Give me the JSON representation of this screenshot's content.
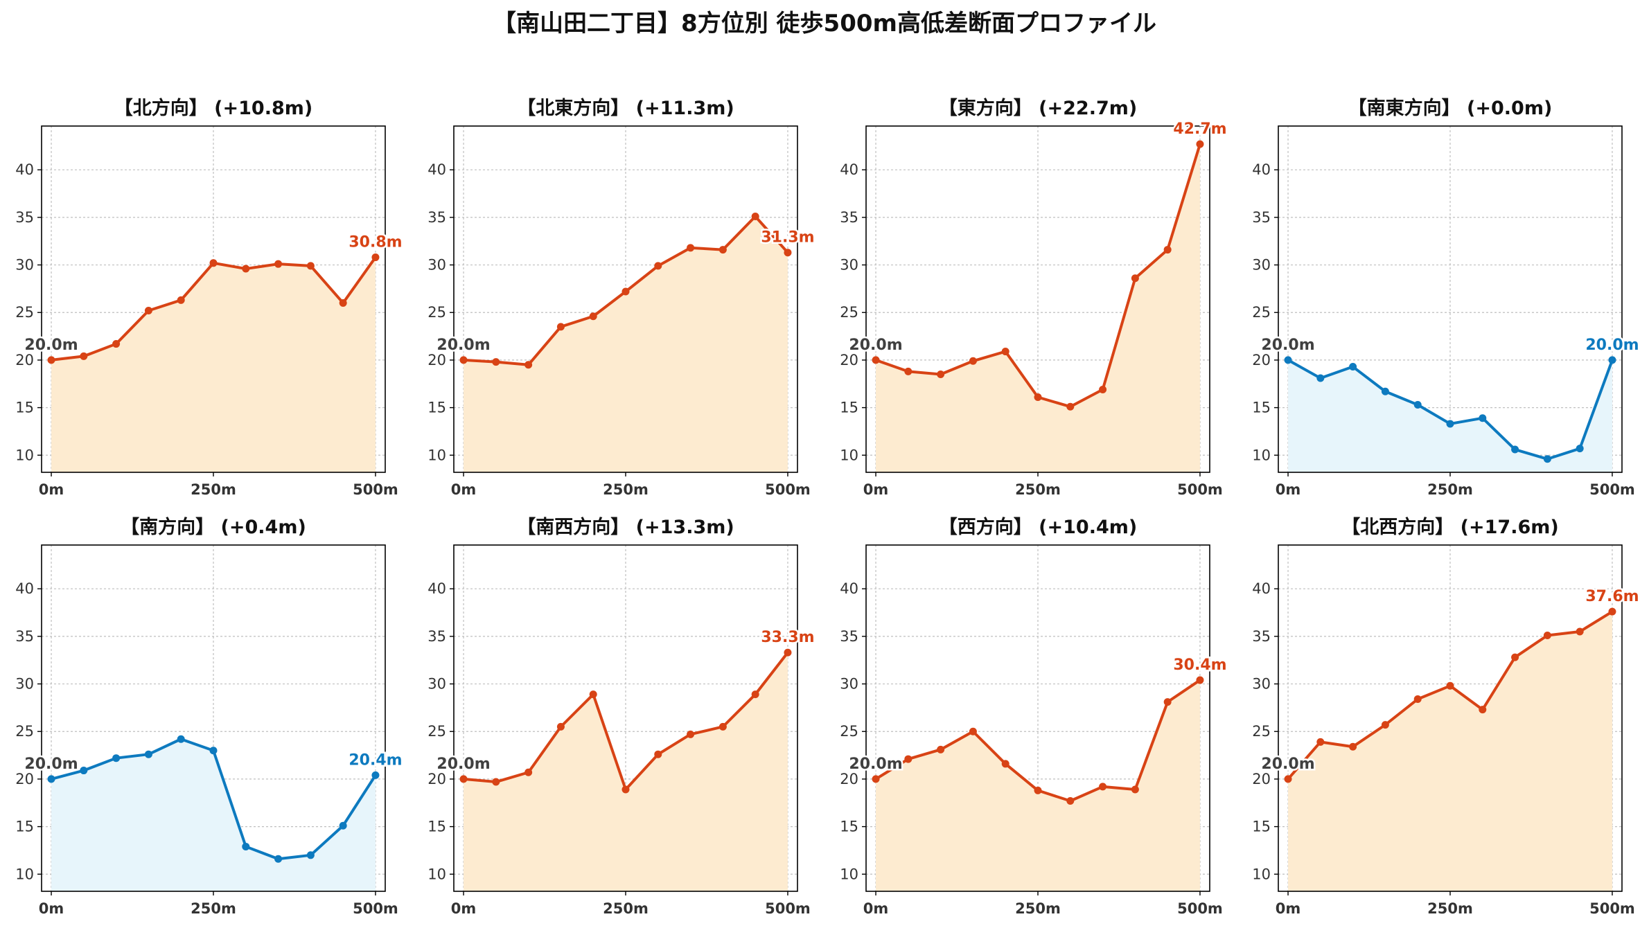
{
  "figure": {
    "title": "【南山田二丁目】8方位別 徒歩500m高低差断面プロファイル"
  },
  "colors": {
    "up_line": "#D84315",
    "up_fill": "#FDEBD0",
    "down_line": "#0D7ABF",
    "down_fill": "#E7F5FB",
    "start_label": "#404040",
    "axis": "#000000",
    "grid": "#BFBFBF",
    "tick_text": "#333333",
    "title_text": "#111111"
  },
  "chart_data": [
    {
      "type": "area",
      "title": "【北方向】 (+10.8m)",
      "trend": "up",
      "x": [
        0,
        50,
        100,
        150,
        200,
        250,
        300,
        350,
        400,
        450,
        500
      ],
      "y": [
        20.0,
        20.4,
        21.7,
        25.2,
        26.3,
        30.2,
        29.6,
        30.1,
        29.9,
        26.0,
        30.8
      ],
      "start_label": "20.0m",
      "end_label": "30.8m",
      "xticks": [
        0,
        250,
        500
      ],
      "xtick_labels": [
        "0m",
        "250m",
        "500m"
      ],
      "yticks": [
        10,
        15,
        20,
        25,
        30,
        35,
        40
      ],
      "yticklabels": [
        "10",
        "15",
        "20",
        "25",
        "30",
        "35",
        "40"
      ],
      "xlim": [
        -15,
        515
      ],
      "ylim": [
        8.2,
        44.6
      ],
      "grid": true
    },
    {
      "type": "area",
      "title": "【北東方向】 (+11.3m)",
      "trend": "up",
      "x": [
        0,
        50,
        100,
        150,
        200,
        250,
        300,
        350,
        400,
        450,
        500
      ],
      "y": [
        20.0,
        19.8,
        19.5,
        23.5,
        24.6,
        27.2,
        29.9,
        31.8,
        31.6,
        35.1,
        31.3
      ],
      "start_label": "20.0m",
      "end_label": "31.3m",
      "xticks": [
        0,
        250,
        500
      ],
      "xtick_labels": [
        "0m",
        "250m",
        "500m"
      ],
      "yticks": [
        10,
        15,
        20,
        25,
        30,
        35,
        40
      ],
      "yticklabels": [
        "10",
        "15",
        "20",
        "25",
        "30",
        "35",
        "40"
      ],
      "xlim": [
        -15,
        515
      ],
      "ylim": [
        8.2,
        44.6
      ],
      "grid": true
    },
    {
      "type": "area",
      "title": "【東方向】 (+22.7m)",
      "trend": "up",
      "x": [
        0,
        50,
        100,
        150,
        200,
        250,
        300,
        350,
        400,
        450,
        500
      ],
      "y": [
        20.0,
        18.8,
        18.5,
        19.9,
        20.9,
        16.1,
        15.1,
        16.9,
        28.6,
        31.6,
        42.7
      ],
      "start_label": "20.0m",
      "end_label": "42.7m",
      "xticks": [
        0,
        250,
        500
      ],
      "xtick_labels": [
        "0m",
        "250m",
        "500m"
      ],
      "yticks": [
        10,
        15,
        20,
        25,
        30,
        35,
        40
      ],
      "yticklabels": [
        "10",
        "15",
        "20",
        "25",
        "30",
        "35",
        "40"
      ],
      "xlim": [
        -15,
        515
      ],
      "ylim": [
        8.2,
        44.6
      ],
      "grid": true
    },
    {
      "type": "area",
      "title": "【南東方向】 (+0.0m)",
      "trend": "down",
      "x": [
        0,
        50,
        100,
        150,
        200,
        250,
        300,
        350,
        400,
        450,
        500
      ],
      "y": [
        20.0,
        18.1,
        19.3,
        16.7,
        15.3,
        13.3,
        13.9,
        10.6,
        9.6,
        10.7,
        20.0
      ],
      "start_label": "20.0m",
      "end_label": "20.0m",
      "xticks": [
        0,
        250,
        500
      ],
      "xtick_labels": [
        "0m",
        "250m",
        "500m"
      ],
      "yticks": [
        10,
        15,
        20,
        25,
        30,
        35,
        40
      ],
      "yticklabels": [
        "10",
        "15",
        "20",
        "25",
        "30",
        "35",
        "40"
      ],
      "xlim": [
        -15,
        515
      ],
      "ylim": [
        8.2,
        44.6
      ],
      "grid": true
    },
    {
      "type": "area",
      "title": "【南方向】 (+0.4m)",
      "trend": "down",
      "x": [
        0,
        50,
        100,
        150,
        200,
        250,
        300,
        350,
        400,
        450,
        500
      ],
      "y": [
        20.0,
        20.9,
        22.2,
        22.6,
        24.2,
        23.0,
        12.9,
        11.6,
        12.0,
        15.1,
        20.4
      ],
      "start_label": "20.0m",
      "end_label": "20.4m",
      "xticks": [
        0,
        250,
        500
      ],
      "xtick_labels": [
        "0m",
        "250m",
        "500m"
      ],
      "yticks": [
        10,
        15,
        20,
        25,
        30,
        35,
        40
      ],
      "yticklabels": [
        "10",
        "15",
        "20",
        "25",
        "30",
        "35",
        "40"
      ],
      "xlim": [
        -15,
        515
      ],
      "ylim": [
        8.2,
        44.6
      ],
      "grid": true
    },
    {
      "type": "area",
      "title": "【南西方向】 (+13.3m)",
      "trend": "up",
      "x": [
        0,
        50,
        100,
        150,
        200,
        250,
        300,
        350,
        400,
        450,
        500
      ],
      "y": [
        20.0,
        19.7,
        20.7,
        25.5,
        28.9,
        18.9,
        22.6,
        24.7,
        25.5,
        28.9,
        33.3
      ],
      "start_label": "20.0m",
      "end_label": "33.3m",
      "xticks": [
        0,
        250,
        500
      ],
      "xtick_labels": [
        "0m",
        "250m",
        "500m"
      ],
      "yticks": [
        10,
        15,
        20,
        25,
        30,
        35,
        40
      ],
      "yticklabels": [
        "10",
        "15",
        "20",
        "25",
        "30",
        "35",
        "40"
      ],
      "xlim": [
        -15,
        515
      ],
      "ylim": [
        8.2,
        44.6
      ],
      "grid": true
    },
    {
      "type": "area",
      "title": "【西方向】 (+10.4m)",
      "trend": "up",
      "x": [
        0,
        50,
        100,
        150,
        200,
        250,
        300,
        350,
        400,
        450,
        500
      ],
      "y": [
        20.0,
        22.1,
        23.1,
        25.0,
        21.6,
        18.8,
        17.7,
        19.2,
        18.9,
        28.1,
        30.4
      ],
      "start_label": "20.0m",
      "end_label": "30.4m",
      "xticks": [
        0,
        250,
        500
      ],
      "xtick_labels": [
        "0m",
        "250m",
        "500m"
      ],
      "yticks": [
        10,
        15,
        20,
        25,
        30,
        35,
        40
      ],
      "yticklabels": [
        "10",
        "15",
        "20",
        "25",
        "30",
        "35",
        "40"
      ],
      "xlim": [
        -15,
        515
      ],
      "ylim": [
        8.2,
        44.6
      ],
      "grid": true
    },
    {
      "type": "area",
      "title": "【北西方向】 (+17.6m)",
      "trend": "up",
      "x": [
        0,
        50,
        100,
        150,
        200,
        250,
        300,
        350,
        400,
        450,
        500
      ],
      "y": [
        20.0,
        23.9,
        23.4,
        25.7,
        28.4,
        29.8,
        27.3,
        32.8,
        35.1,
        35.5,
        37.6
      ],
      "start_label": "20.0m",
      "end_label": "37.6m",
      "xticks": [
        0,
        250,
        500
      ],
      "xtick_labels": [
        "0m",
        "250m",
        "500m"
      ],
      "yticks": [
        10,
        15,
        20,
        25,
        30,
        35,
        40
      ],
      "yticklabels": [
        "10",
        "15",
        "20",
        "25",
        "30",
        "35",
        "40"
      ],
      "xlim": [
        -15,
        515
      ],
      "ylim": [
        8.2,
        44.6
      ],
      "grid": true
    }
  ]
}
